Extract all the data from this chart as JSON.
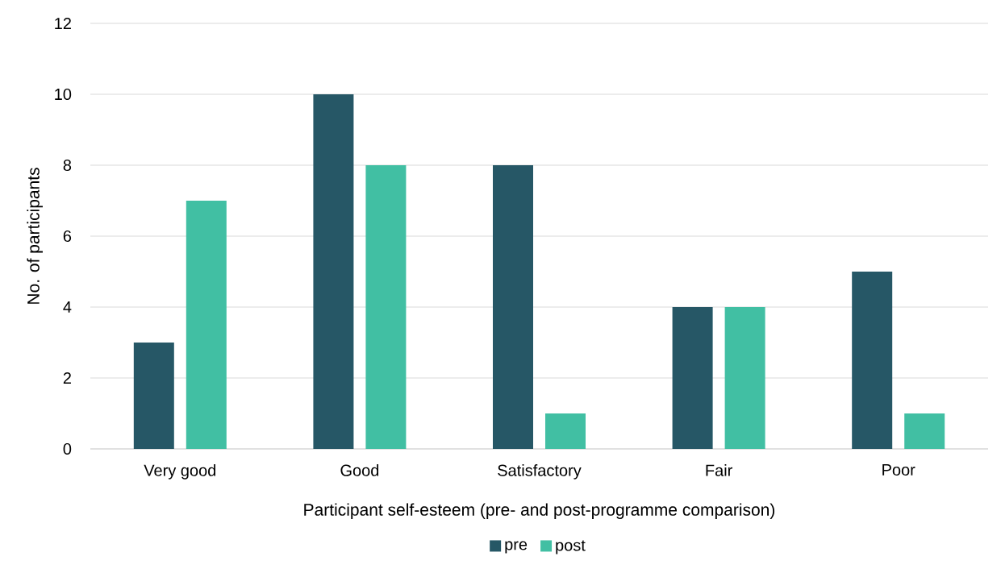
{
  "chart_data": {
    "type": "bar",
    "xlabel": "Participant self-esteem (pre- and post-programme comparison)",
    "ylabel": "No. of participants",
    "categories": [
      "Very good",
      "Good",
      "Satisfactory",
      "Fair",
      "Poor"
    ],
    "series": [
      {
        "name": "pre",
        "color": "#265766",
        "values": [
          3,
          10,
          8,
          4,
          5
        ]
      },
      {
        "name": "post",
        "color": "#41bfa3",
        "values": [
          7,
          8,
          1,
          4,
          1
        ]
      }
    ],
    "ylim": [
      0,
      12
    ],
    "yticks": [
      0,
      2,
      4,
      6,
      8,
      10,
      12
    ],
    "grid": "y",
    "legend": "bottom"
  }
}
